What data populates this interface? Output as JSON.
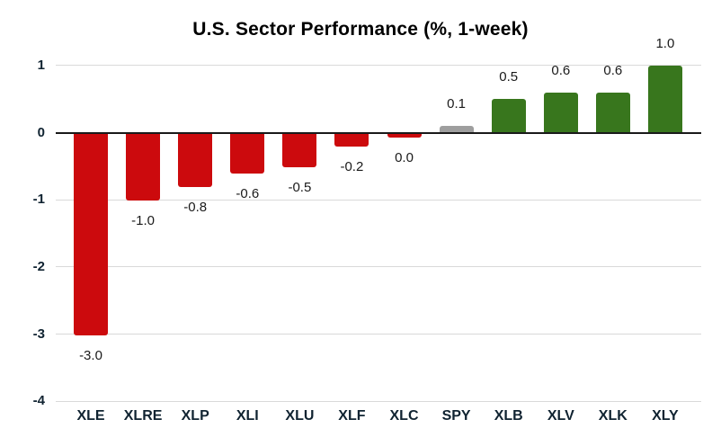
{
  "chart_data": {
    "type": "bar",
    "title": "U.S. Sector Performance (%, 1-week)",
    "categories": [
      "XLE",
      "XLRE",
      "XLP",
      "XLI",
      "XLU",
      "XLF",
      "XLC",
      "SPY",
      "XLB",
      "XLV",
      "XLK",
      "XLY"
    ],
    "values": [
      -3.0,
      -1.0,
      -0.8,
      -0.6,
      -0.5,
      -0.2,
      0.0,
      0.1,
      0.5,
      0.6,
      0.6,
      1.0
    ],
    "value_labels": [
      "-3.0",
      "-1.0",
      "-0.8",
      "-0.6",
      "-0.5",
      "-0.2",
      "0.0",
      "0.1",
      "0.5",
      "0.6",
      "0.6",
      "1.0"
    ],
    "bar_color_keys": [
      "red",
      "red",
      "red",
      "red",
      "red",
      "red",
      "red",
      "gray",
      "green",
      "green",
      "green",
      "green"
    ],
    "colors": {
      "red": "#cc0a0d",
      "green": "#38761d",
      "gray": "#9e9e9e"
    },
    "xlabel": "",
    "ylabel": "",
    "ylim": [
      -4,
      1
    ],
    "yticks": [
      1,
      0,
      -1,
      -2,
      -3,
      -4
    ],
    "ytick_labels": [
      "1",
      "0",
      "-1",
      "-2",
      "-3",
      "-4"
    ],
    "grid": true,
    "legend": "none",
    "style": {
      "gridline_color": "#d9d9d9",
      "zero_line_color": "#1a1a1a",
      "axis_label_color": "#102331",
      "value_label_color": "#1a1a1a",
      "background": "#ffffff"
    }
  }
}
